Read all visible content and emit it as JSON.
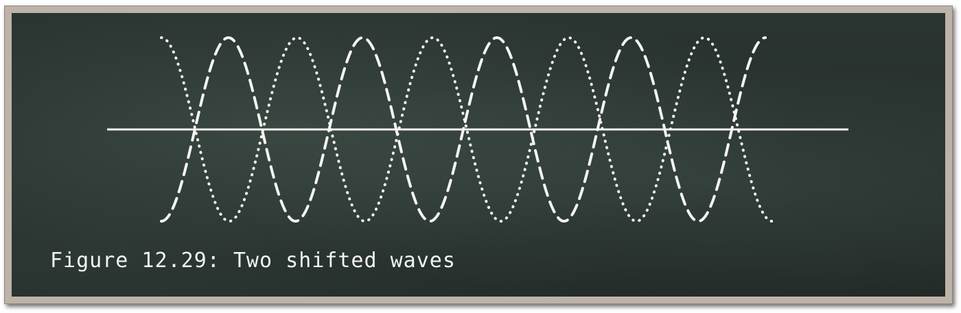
{
  "caption": "Figure 12.29: Two shifted waves",
  "colors": {
    "board": "#27302d",
    "frame": "#bdb3a8",
    "chalk": "#f4f4f0"
  },
  "waves": [
    {
      "style": "dashed",
      "cycles": 4.5,
      "phase": 0
    },
    {
      "style": "dotted",
      "cycles": 4.5,
      "phase": 0.5
    }
  ]
}
